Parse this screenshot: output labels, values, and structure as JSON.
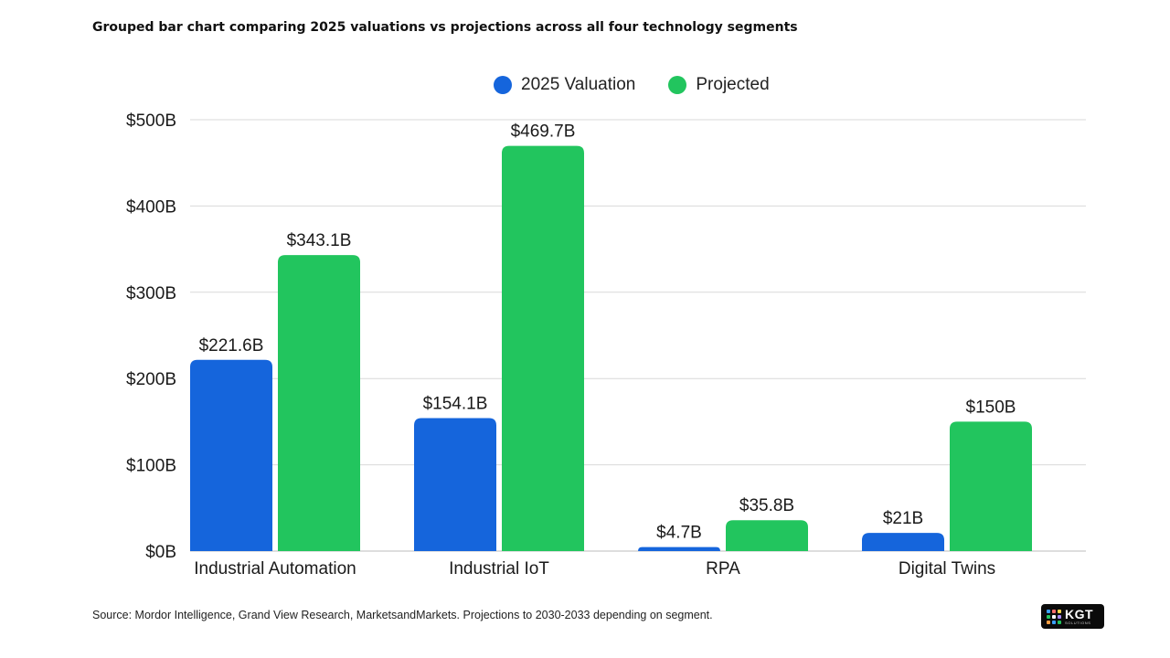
{
  "header": {
    "title": "Grouped bar chart comparing 2025 valuations vs projections across all four technology segments"
  },
  "footer": {
    "source": "Source: Mordor Intelligence, Grand View Research, MarketsandMarkets. Projections to 2030-2033 depending on segment."
  },
  "logo": {
    "text": "KGT",
    "subtext": "SOLUTIONS",
    "dot_colors": [
      "#3ba0ff",
      "#ff6b6b",
      "#ffd54a",
      "#22c55e",
      "#ffffff",
      "#a78bfa",
      "#ff9f43",
      "#3ba0ff",
      "#22c55e"
    ]
  },
  "colors": {
    "valuation": "#1565dc",
    "projected": "#22c55e",
    "grid": "#d9d9d9",
    "text": "#1a1a1a"
  },
  "chart_data": {
    "type": "bar",
    "title": "Grouped bar chart comparing 2025 valuations vs projections across all four technology segments",
    "categories": [
      "Industrial Automation",
      "Industrial IoT",
      "RPA",
      "Digital Twins"
    ],
    "series": [
      {
        "name": "2025 Valuation",
        "color": "#1565dc",
        "values": [
          221.6,
          154.1,
          4.7,
          21
        ],
        "labels": [
          "$221.6B",
          "$154.1B",
          "$4.7B",
          "$21B"
        ]
      },
      {
        "name": "Projected",
        "color": "#22c55e",
        "values": [
          343.1,
          469.7,
          35.8,
          150
        ],
        "labels": [
          "$343.1B",
          "$469.7B",
          "$35.8B",
          "$150B"
        ]
      }
    ],
    "ylim": [
      0,
      500
    ],
    "yticks": [
      0,
      100,
      200,
      300,
      400,
      500
    ],
    "ytick_labels": [
      "$0B",
      "$100B",
      "$200B",
      "$300B",
      "$400B",
      "$500B"
    ],
    "xlabel": "",
    "ylabel": "",
    "grid": true,
    "legend_position": "top-center"
  }
}
